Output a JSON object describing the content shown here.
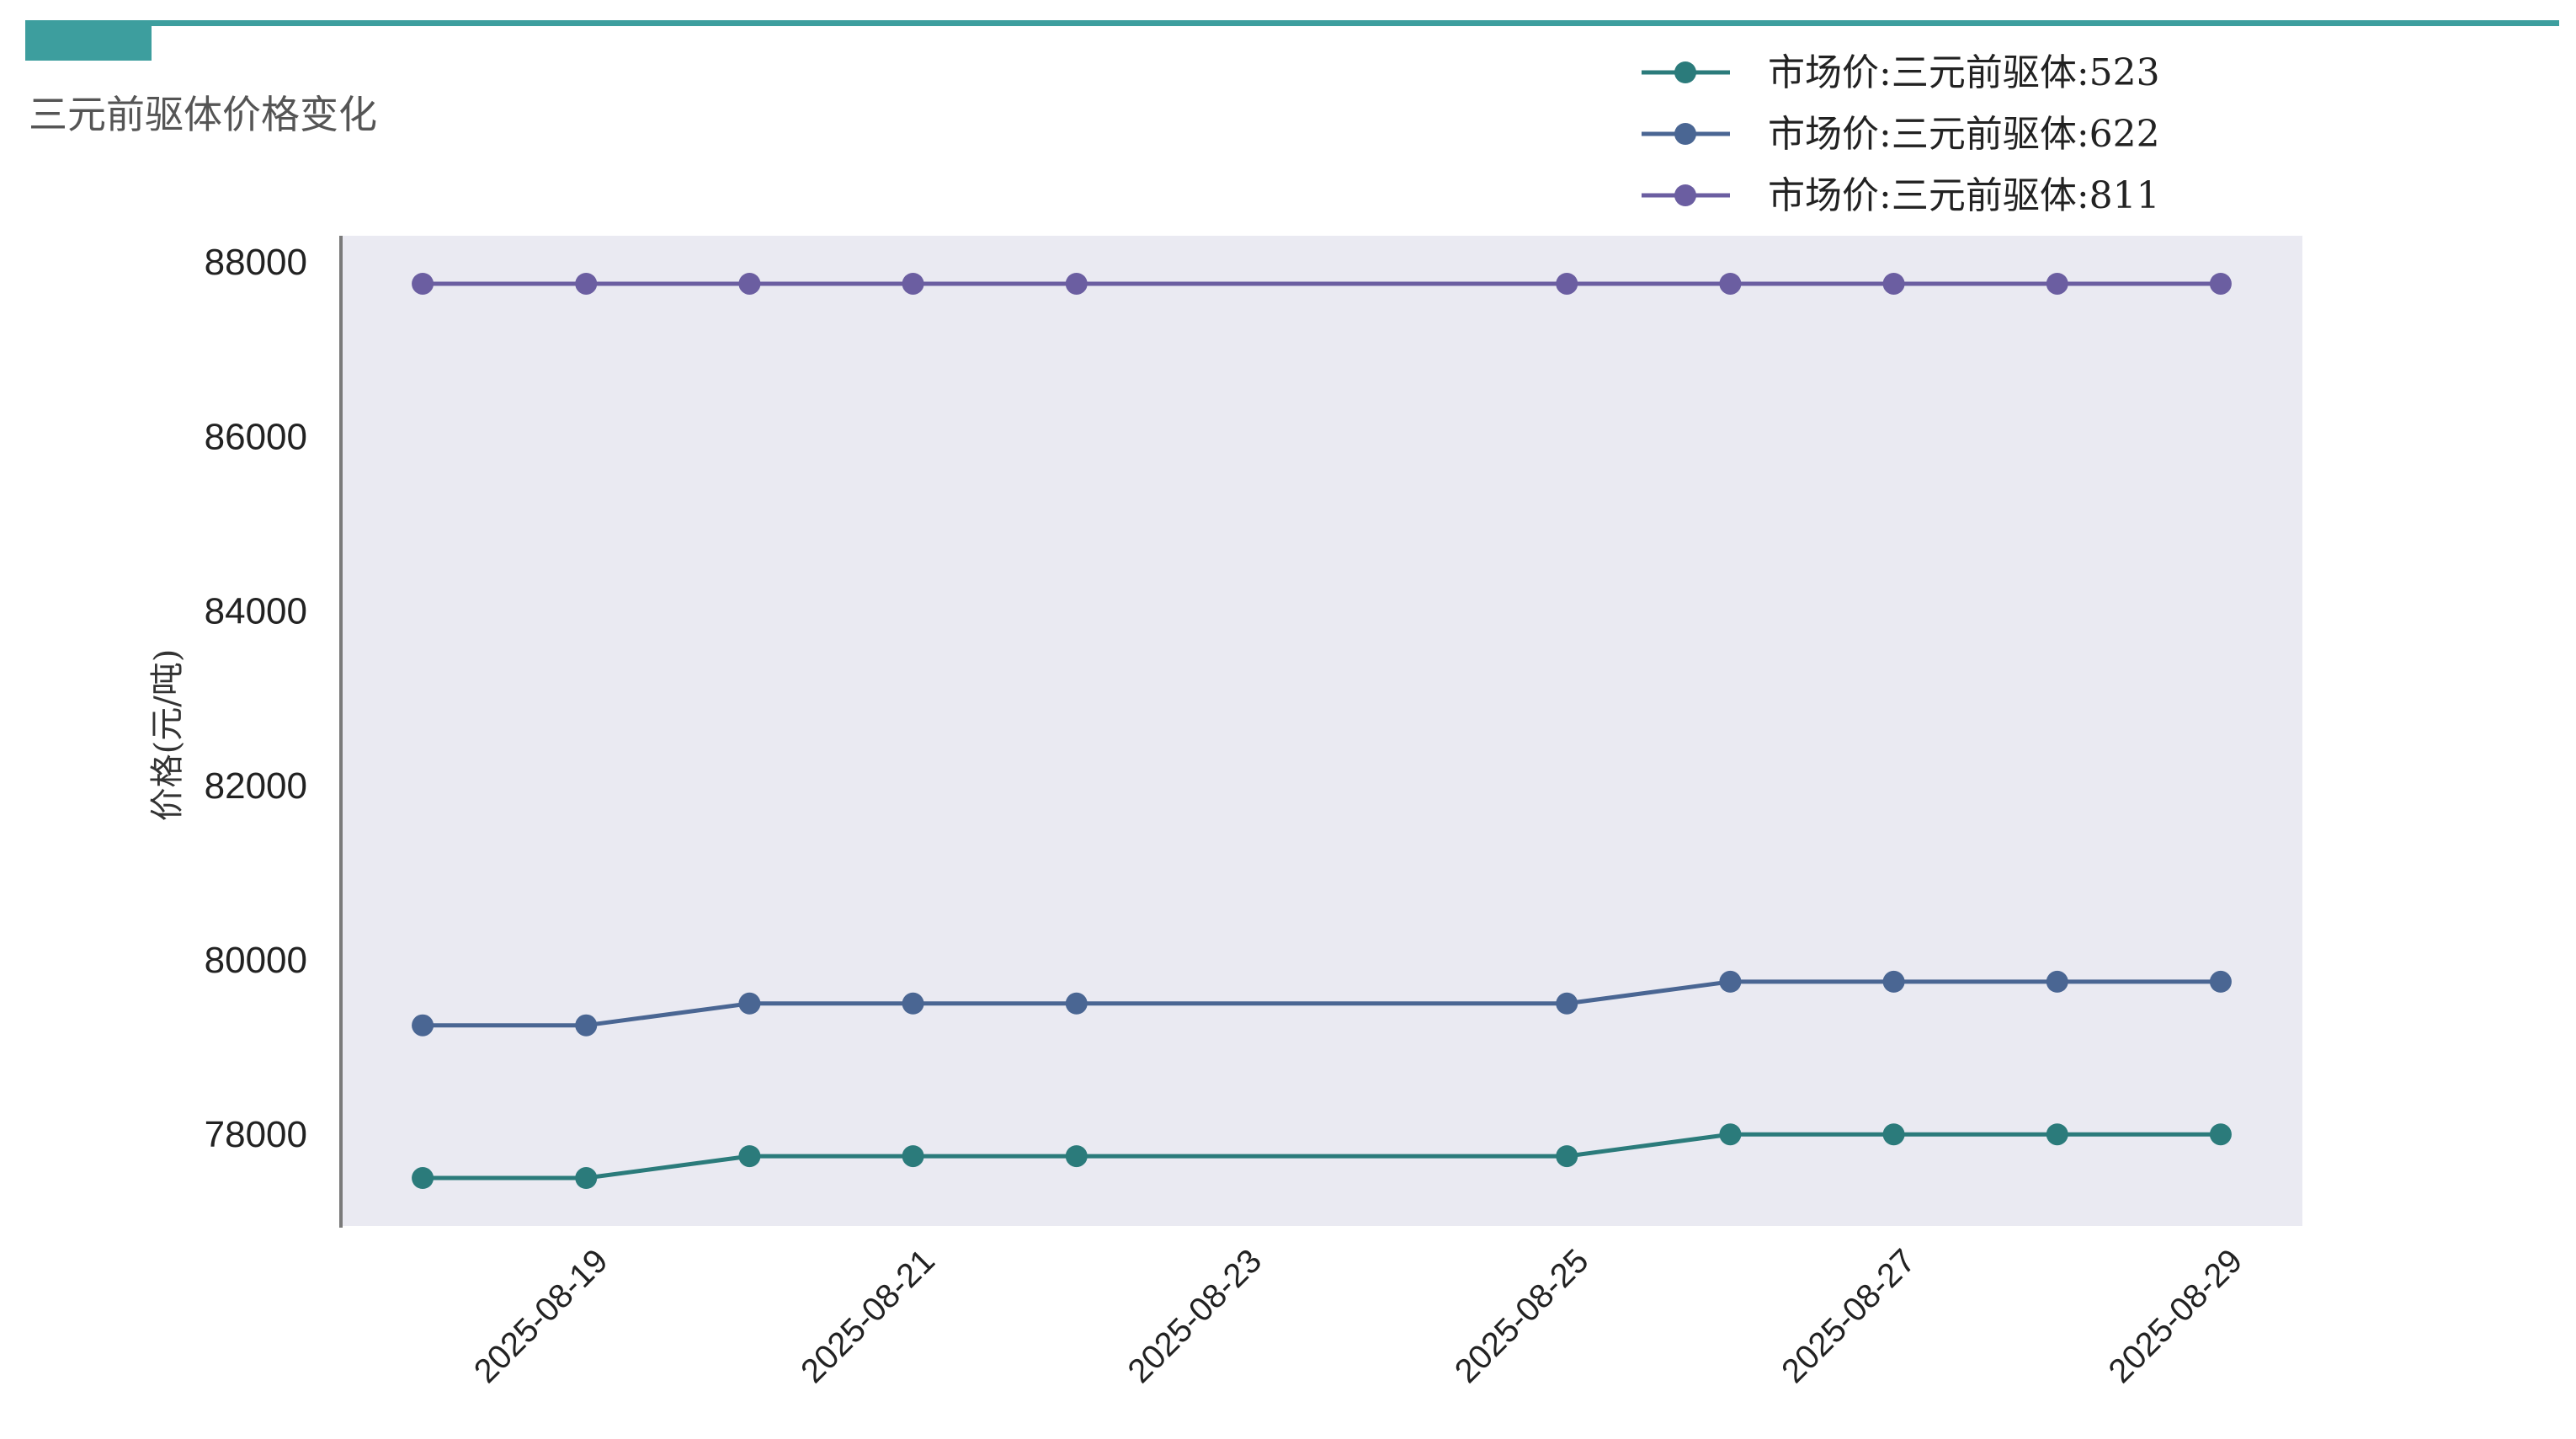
{
  "colors": {
    "accent": "#3d9e9e",
    "plot_bg": "#eaeaf2",
    "axis": "#7a7a7a"
  },
  "chart_data": {
    "type": "line",
    "title": "三元前驱体价格变化",
    "ylabel": "价格(元/吨)",
    "xlabel": "",
    "ylim": [
      76950,
      88300
    ],
    "x": [
      "2025-08-18",
      "2025-08-19",
      "2025-08-20",
      "2025-08-21",
      "2025-08-22",
      "2025-08-25",
      "2025-08-26",
      "2025-08-27",
      "2025-08-28",
      "2025-08-29"
    ],
    "xlim": [
      "2025-08-17T12:00",
      "2025-08-29T12:00"
    ],
    "xticks": [
      "2025-08-19",
      "2025-08-21",
      "2025-08-23",
      "2025-08-25",
      "2025-08-27",
      "2025-08-29"
    ],
    "yticks": [
      78000,
      80000,
      82000,
      84000,
      86000,
      88000
    ],
    "grid": false,
    "legend_position": "top-right",
    "series": [
      {
        "name": "市场价:三元前驱体:523",
        "color": "#2b7b7b",
        "values": [
          77500,
          77500,
          77750,
          77750,
          77750,
          77750,
          78000,
          78000,
          78000,
          78000
        ]
      },
      {
        "name": "市场价:三元前驱体:622",
        "color": "#4a6693",
        "values": [
          79250,
          79250,
          79500,
          79500,
          79500,
          79500,
          79750,
          79750,
          79750,
          79750
        ]
      },
      {
        "name": "市场价:三元前驱体:811",
        "color": "#6b5ea1",
        "values": [
          87750,
          87750,
          87750,
          87750,
          87750,
          87750,
          87750,
          87750,
          87750,
          87750
        ]
      }
    ]
  }
}
